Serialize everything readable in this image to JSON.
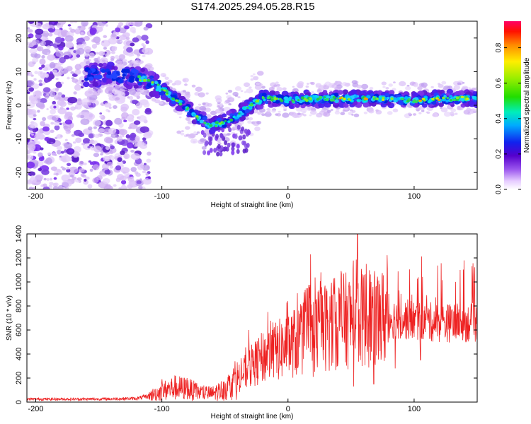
{
  "title": "S174.2025.294.05.28.R15",
  "chart_data": [
    {
      "type": "heatmap",
      "description_ref": "top panel",
      "xlabel": "Height of straight line (km)",
      "ylabel": "Frequency (Hz)",
      "xlim": [
        -207,
        150
      ],
      "ylim": [
        -25,
        25
      ],
      "xticks": [
        -200,
        -100,
        0,
        100
      ],
      "xtick_labels": [
        "-200",
        "-100",
        "0",
        "100"
      ],
      "yticks": [
        -20,
        -10,
        0,
        10,
        20
      ],
      "ytick_labels": [
        "-20",
        "-10",
        "0",
        "10",
        "20"
      ],
      "ridge": {
        "x": [
          -160,
          -140,
          -120,
          -110,
          -100,
          -90,
          -80,
          -70,
          -60,
          -50,
          -40,
          -30,
          -20,
          -10,
          0,
          20,
          50,
          80,
          100,
          120,
          150
        ],
        "y": [
          9,
          9,
          8.5,
          7,
          5,
          2,
          -1,
          -4,
          -6,
          -5,
          -3,
          0,
          2,
          2,
          1.5,
          2,
          2,
          2,
          1.5,
          2,
          2
        ]
      },
      "colorbar": {
        "label": "Normalized spectral amplitude",
        "range": [
          0,
          0.95
        ],
        "ticks": [
          0.0,
          0.2,
          0.4,
          0.6,
          0.8
        ],
        "tick_labels": [
          "0.0",
          "0.2",
          "0.4",
          "0.6",
          "0.8"
        ]
      }
    },
    {
      "type": "line",
      "description_ref": "bottom panel",
      "xlabel": "Height of straight line (km)",
      "ylabel": "SNR (10 * v/v)",
      "xlim": [
        -207,
        150
      ],
      "ylim": [
        0,
        1400
      ],
      "xticks": [
        -200,
        -100,
        0,
        100
      ],
      "xtick_labels": [
        "-200",
        "-100",
        "0",
        "100"
      ],
      "yticks": [
        0,
        200,
        400,
        600,
        800,
        1000,
        1200,
        1400
      ],
      "ytick_labels": [
        "0",
        "200",
        "400",
        "600",
        "800",
        "1000",
        "1200",
        "1400"
      ],
      "color": "#ee2222",
      "envelope": {
        "x": [
          -207,
          -150,
          -120,
          -110,
          -100,
          -90,
          -80,
          -70,
          -60,
          -50,
          -40,
          -30,
          -20,
          -10,
          0,
          10,
          20,
          30,
          40,
          50,
          60,
          70,
          80,
          90,
          100,
          110,
          120,
          130,
          150
        ],
        "y": [
          25,
          25,
          30,
          50,
          90,
          120,
          110,
          80,
          70,
          110,
          190,
          290,
          370,
          420,
          470,
          520,
          580,
          630,
          660,
          690,
          700,
          700,
          700,
          690,
          680,
          670,
          660,
          660,
          660
        ]
      },
      "peaks": [
        {
          "x": -100,
          "y": 190
        },
        {
          "x": -80,
          "y": 200
        },
        {
          "x": -42,
          "y": 340
        },
        {
          "x": -31,
          "y": 600
        },
        {
          "x": -16,
          "y": 750
        },
        {
          "x": 18,
          "y": 1230
        },
        {
          "x": 26,
          "y": 1080
        },
        {
          "x": 52,
          "y": 1260
        },
        {
          "x": 55,
          "y": 1400
        },
        {
          "x": 62,
          "y": 1150
        },
        {
          "x": 78,
          "y": 920
        },
        {
          "x": 88,
          "y": 930
        },
        {
          "x": 110,
          "y": 890
        },
        {
          "x": 130,
          "y": 770
        }
      ],
      "dips": [
        {
          "x": 20,
          "y": 210
        },
        {
          "x": 52,
          "y": 130
        },
        {
          "x": 68,
          "y": 150
        },
        {
          "x": 85,
          "y": 280
        },
        {
          "x": 105,
          "y": 350
        }
      ]
    }
  ]
}
